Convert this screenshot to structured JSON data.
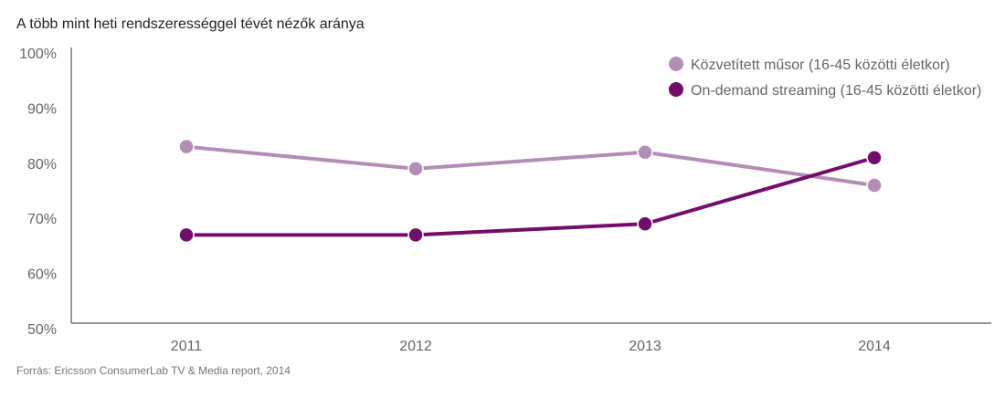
{
  "chart_data": {
    "type": "line",
    "title": "A több mint heti rendszerességgel tévét nézők aránya",
    "xlabel": "",
    "ylabel": "",
    "x": [
      "2011",
      "2012",
      "2013",
      "2014"
    ],
    "ylim": [
      50,
      100
    ],
    "yticks": [
      "50%",
      "60%",
      "70%",
      "80%",
      "90%",
      "100%"
    ],
    "grid": false,
    "legend_position": "top-right",
    "series": [
      {
        "name": "Közvetített műsor (16-45 közötti életkor)",
        "color": "#b48db7",
        "values": [
          83,
          79,
          82,
          76
        ]
      },
      {
        "name": "On-demand streaming (16-45 közötti életkor)",
        "color": "#730d6b",
        "values": [
          67,
          67,
          69,
          81
        ]
      }
    ],
    "source": "Forrás:  Ericsson ConsumerLab TV & Media report, 2014"
  }
}
